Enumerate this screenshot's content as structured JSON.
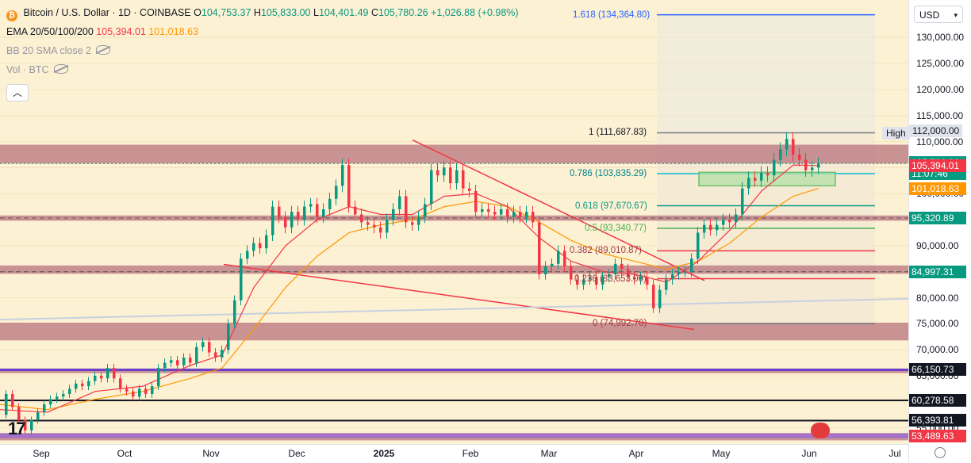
{
  "header": {
    "title": "Bitcoin / U.S. Dollar · 1D · COINBASE",
    "open_label": "O",
    "open": "104,753.37",
    "high_label": "H",
    "high": "105,833.00",
    "low_label": "L",
    "low": "104,401.49",
    "close_label": "C",
    "close": "105,780.26",
    "change": "+1,026.88 (+0.98%)"
  },
  "indicators": {
    "ema_name": "EMA 20/50/100/200",
    "ema_val1": "105,394.01",
    "ema_val2": "101,018.63",
    "bb": "BB 20 SMA close 2",
    "vol": "Vol · BTC"
  },
  "currency": "USD",
  "colors": {
    "up": "#089981",
    "down": "#f23645",
    "bg": "#fdf1d4",
    "zone": "#a0455c",
    "fib_top": "#2962ff",
    "fib_786": "#00bcd4",
    "fib_618": "#089981",
    "fib_05": "#4caf50",
    "ema_fast": "#f23645",
    "ema_slow": "#ff9800",
    "support": "#9c27b0"
  },
  "chart_data": {
    "type": "candlestick",
    "symbol": "BTCUSD",
    "timeframe": "1D",
    "x_ticks": [
      "Sep",
      "Oct",
      "Nov",
      "Dec",
      "2025",
      "Feb",
      "Mar",
      "Apr",
      "May",
      "Jun",
      "Jul"
    ],
    "y_ticks": [
      "130,000.00",
      "125,000.00",
      "120,000.00",
      "115,000.00",
      "110,000.00",
      "105,000.00",
      "100,000.00",
      "95,000.00",
      "90,000.00",
      "85,000.00",
      "80,000.00",
      "75,000.00",
      "70,000.00",
      "65,000.00",
      "60,000.00",
      "55,000.00"
    ],
    "y_tick_values": [
      130000,
      125000,
      120000,
      115000,
      110000,
      105000,
      100000,
      95000,
      90000,
      85000,
      80000,
      75000,
      70000,
      65000,
      60000,
      55000
    ],
    "ylim": [
      51900,
      137200
    ],
    "high_label": "High",
    "high_value": "112,000.00",
    "price_labels": [
      {
        "value": 105780.26,
        "text": "105,780.26",
        "sub": "11:07:46",
        "color": "#089981"
      },
      {
        "value": 105394.01,
        "text": "105,394.01",
        "color": "#f23645"
      },
      {
        "value": 101018.63,
        "text": "101,018.63",
        "color": "#ff9800"
      },
      {
        "value": 95320.89,
        "text": "95,320.89",
        "color": "#089981"
      },
      {
        "value": 84997.31,
        "text": "84,997.31",
        "color": "#089981"
      },
      {
        "value": 66150.73,
        "text": "66,150.73",
        "color": "#131722"
      },
      {
        "value": 60278.58,
        "text": "60,278.58",
        "color": "#131722"
      },
      {
        "value": 56393.81,
        "text": "56,393.81",
        "color": "#131722"
      },
      {
        "value": 53489.63,
        "text": "53,489.63",
        "color": "#f23645"
      }
    ],
    "fib_levels": [
      {
        "ratio": "1.618",
        "text": "1.618 (134,364.80)",
        "value": 134364.8
      },
      {
        "ratio": "1",
        "text": "1 (111,687.83)",
        "value": 111687.83
      },
      {
        "ratio": "0.786",
        "text": "0.786 (103,835.29)",
        "value": 103835.29
      },
      {
        "ratio": "0.618",
        "text": "0.618 (97,670.67)",
        "value": 97670.67
      },
      {
        "ratio": "0.5",
        "text": "0.5 (93,340.77)",
        "value": 93340.77
      },
      {
        "ratio": "0.382",
        "text": "0.382 (89,010.87)",
        "value": 89010.87
      },
      {
        "ratio": "0.236",
        "text": "0.236 (83,653.00)",
        "value": 83653.0
      },
      {
        "ratio": "0",
        "text": "0 (74,992.70)",
        "value": 74992.7
      }
    ],
    "zones": [
      {
        "from": 105800,
        "to": 109400
      },
      {
        "from": 94800,
        "to": 95800
      },
      {
        "from": 84600,
        "to": 86200
      },
      {
        "from": 71800,
        "to": 75200
      },
      {
        "from": 65500,
        "to": 66400
      },
      {
        "from": 52600,
        "to": 54000
      }
    ],
    "support_lines": [
      66150.73,
      60278.58,
      56393.81
    ],
    "price_path": [
      [
        0,
        57500
      ],
      [
        8,
        61500
      ],
      [
        16,
        59000
      ],
      [
        24,
        56500
      ],
      [
        32,
        54500
      ],
      [
        40,
        56500
      ],
      [
        48,
        58000
      ],
      [
        56,
        59500
      ],
      [
        64,
        60500
      ],
      [
        72,
        61000
      ],
      [
        80,
        61500
      ],
      [
        88,
        62500
      ],
      [
        96,
        63500
      ],
      [
        104,
        63000
      ],
      [
        112,
        64000
      ],
      [
        120,
        65000
      ],
      [
        128,
        64500
      ],
      [
        136,
        66500
      ],
      [
        144,
        64500
      ],
      [
        152,
        62500
      ],
      [
        160,
        62000
      ],
      [
        168,
        61000
      ],
      [
        176,
        62500
      ],
      [
        184,
        61500
      ],
      [
        192,
        63000
      ],
      [
        200,
        66500
      ],
      [
        208,
        67500
      ],
      [
        216,
        68000
      ],
      [
        224,
        67000
      ],
      [
        232,
        68500
      ],
      [
        240,
        67500
      ],
      [
        248,
        70500
      ],
      [
        256,
        71500
      ],
      [
        264,
        69500
      ],
      [
        272,
        68500
      ],
      [
        280,
        70000
      ],
      [
        288,
        75000
      ],
      [
        296,
        79500
      ],
      [
        304,
        87500
      ],
      [
        312,
        89000
      ],
      [
        320,
        90500
      ],
      [
        328,
        89500
      ],
      [
        336,
        92000
      ],
      [
        344,
        97500
      ],
      [
        352,
        95500
      ],
      [
        360,
        93500
      ],
      [
        368,
        96500
      ],
      [
        376,
        95000
      ],
      [
        384,
        97500
      ],
      [
        392,
        98000
      ],
      [
        400,
        95500
      ],
      [
        408,
        97000
      ],
      [
        416,
        99000
      ],
      [
        424,
        101500
      ],
      [
        432,
        105500
      ],
      [
        440,
        97500
      ],
      [
        448,
        96000
      ],
      [
        456,
        94500
      ],
      [
        464,
        94000
      ],
      [
        472,
        93500
      ],
      [
        480,
        92500
      ],
      [
        488,
        95000
      ],
      [
        496,
        97000
      ],
      [
        504,
        99500
      ],
      [
        512,
        94500
      ],
      [
        520,
        94000
      ],
      [
        528,
        95500
      ],
      [
        536,
        98000
      ],
      [
        544,
        104500
      ],
      [
        552,
        103500
      ],
      [
        560,
        105000
      ],
      [
        568,
        102000
      ],
      [
        576,
        104500
      ],
      [
        584,
        101000
      ],
      [
        592,
        100500
      ],
      [
        600,
        96500
      ],
      [
        608,
        97000
      ],
      [
        616,
        96500
      ],
      [
        624,
        96000
      ],
      [
        632,
        97000
      ],
      [
        640,
        95500
      ],
      [
        648,
        96500
      ],
      [
        656,
        95500
      ],
      [
        664,
        96500
      ],
      [
        672,
        94500
      ],
      [
        680,
        84500
      ],
      [
        688,
        86000
      ],
      [
        696,
        86500
      ],
      [
        704,
        89000
      ],
      [
        712,
        86000
      ],
      [
        720,
        83500
      ],
      [
        728,
        82500
      ],
      [
        736,
        83500
      ],
      [
        744,
        84000
      ],
      [
        752,
        82500
      ],
      [
        760,
        84000
      ],
      [
        768,
        84500
      ],
      [
        776,
        86500
      ],
      [
        784,
        85500
      ],
      [
        792,
        84000
      ],
      [
        800,
        83500
      ],
      [
        808,
        84000
      ],
      [
        816,
        82500
      ],
      [
        824,
        78000
      ],
      [
        832,
        81500
      ],
      [
        840,
        83500
      ],
      [
        848,
        84500
      ],
      [
        856,
        85000
      ],
      [
        864,
        85000
      ],
      [
        872,
        87500
      ],
      [
        880,
        92500
      ],
      [
        888,
        94000
      ],
      [
        896,
        93000
      ],
      [
        904,
        94000
      ],
      [
        912,
        95000
      ],
      [
        920,
        94500
      ],
      [
        928,
        96000
      ],
      [
        936,
        101000
      ],
      [
        944,
        103000
      ],
      [
        952,
        102500
      ],
      [
        960,
        104000
      ],
      [
        968,
        103500
      ],
      [
        976,
        106500
      ],
      [
        984,
        108500
      ],
      [
        992,
        110500
      ],
      [
        1000,
        107500
      ],
      [
        1008,
        106500
      ],
      [
        1016,
        104500
      ],
      [
        1024,
        105000
      ],
      [
        1032,
        105780
      ]
    ],
    "ema_fast_path": [
      [
        0,
        58500
      ],
      [
        60,
        58000
      ],
      [
        120,
        62000
      ],
      [
        180,
        63000
      ],
      [
        240,
        67000
      ],
      [
        280,
        69000
      ],
      [
        320,
        82000
      ],
      [
        360,
        90000
      ],
      [
        400,
        95000
      ],
      [
        440,
        97500
      ],
      [
        480,
        96000
      ],
      [
        520,
        96000
      ],
      [
        560,
        99500
      ],
      [
        600,
        100000
      ],
      [
        640,
        97500
      ],
      [
        680,
        91500
      ],
      [
        720,
        87000
      ],
      [
        760,
        85000
      ],
      [
        800,
        84500
      ],
      [
        840,
        83000
      ],
      [
        880,
        87000
      ],
      [
        920,
        93000
      ],
      [
        960,
        100500
      ],
      [
        1000,
        105500
      ],
      [
        1032,
        105394
      ]
    ],
    "ema_slow_path": [
      [
        0,
        59500
      ],
      [
        60,
        58500
      ],
      [
        120,
        60500
      ],
      [
        180,
        62000
      ],
      [
        240,
        64500
      ],
      [
        280,
        66500
      ],
      [
        320,
        74000
      ],
      [
        360,
        82000
      ],
      [
        400,
        88000
      ],
      [
        440,
        92500
      ],
      [
        480,
        94000
      ],
      [
        520,
        95000
      ],
      [
        560,
        97500
      ],
      [
        600,
        98500
      ],
      [
        640,
        97500
      ],
      [
        680,
        94500
      ],
      [
        720,
        91000
      ],
      [
        760,
        88500
      ],
      [
        800,
        87000
      ],
      [
        840,
        85500
      ],
      [
        880,
        87000
      ],
      [
        920,
        90500
      ],
      [
        960,
        95500
      ],
      [
        1000,
        99500
      ],
      [
        1032,
        101018
      ]
    ],
    "trendlines": [
      {
        "from": [
          520,
          110300
        ],
        "to": [
          888,
          83300
        ]
      },
      {
        "from": [
          282,
          86400
        ],
        "to": [
          875,
          73900
        ]
      },
      {
        "from": [
          0,
          75800
        ],
        "to": [
          1145,
          79800
        ]
      }
    ]
  },
  "x_axis": [
    "Sep",
    "Oct",
    "Nov",
    "Dec",
    "2025",
    "Feb",
    "Mar",
    "Apr",
    "May",
    "Jun",
    "Jul"
  ]
}
